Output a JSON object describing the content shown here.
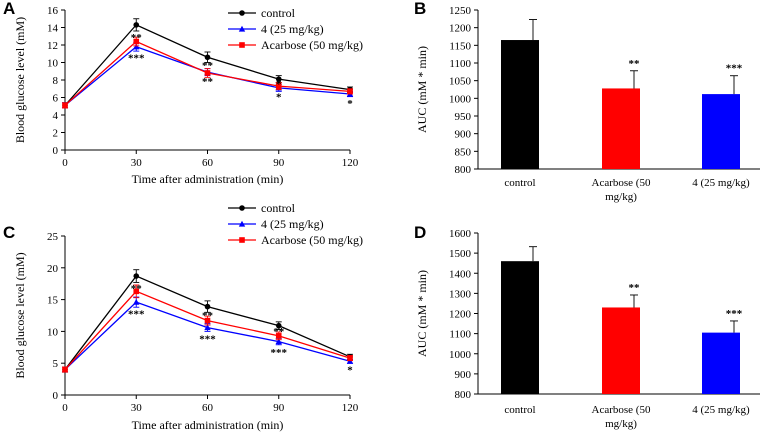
{
  "colors": {
    "control": "#000000",
    "compound": "#0000ff",
    "acarbose": "#ff0000"
  },
  "chart_data": [
    {
      "panel": "A",
      "type": "line",
      "xlabel": "Time after administration (min)",
      "ylabel": "Blood glucose level (mM)",
      "x": [
        0,
        30,
        60,
        90,
        120
      ],
      "xticks": [
        "0",
        "30",
        "60",
        "90",
        "120"
      ],
      "xlim": [
        0,
        120
      ],
      "ylim": [
        0,
        16
      ],
      "yticks": [
        "0",
        "2",
        "4",
        "6",
        "8",
        "10",
        "12",
        "14",
        "16"
      ],
      "legend": [
        "control",
        "4 (25 mg/kg)",
        "Acarbose (50 mg/kg)"
      ],
      "series": [
        {
          "name": "control",
          "color": "#000000",
          "marker": "circle",
          "values": [
            5.1,
            14.3,
            10.6,
            8.1,
            6.9
          ],
          "errors": [
            0.3,
            0.7,
            0.6,
            0.4,
            0.3
          ]
        },
        {
          "name": "4 (25 mg/kg)",
          "color": "#0000ff",
          "marker": "triangle",
          "values": [
            5.1,
            11.8,
            8.9,
            7.1,
            6.4
          ],
          "errors": [
            0.3,
            0.5,
            0.4,
            0.4,
            0.3
          ]
        },
        {
          "name": "Acarbose (50 mg/kg)",
          "color": "#ff0000",
          "marker": "square",
          "values": [
            5.1,
            12.4,
            8.8,
            7.3,
            6.7
          ],
          "errors": [
            0.3,
            0.5,
            0.5,
            0.4,
            0.3
          ]
        }
      ],
      "annotations": [
        {
          "x": 30,
          "y": 12.9,
          "text": "**"
        },
        {
          "x": 30,
          "y": 10.6,
          "text": "***"
        },
        {
          "x": 60,
          "y": 9.7,
          "text": "**"
        },
        {
          "x": 60,
          "y": 7.9,
          "text": "**"
        },
        {
          "x": 90,
          "y": 7.6,
          "text": "*"
        },
        {
          "x": 90,
          "y": 6.1,
          "text": "*"
        },
        {
          "x": 120,
          "y": 5.4,
          "text": "*"
        }
      ]
    },
    {
      "panel": "B",
      "type": "bar",
      "ylabel": "AUC (mM * min)",
      "ylim": [
        800,
        1250
      ],
      "yticks": [
        "800",
        "850",
        "900",
        "950",
        "1000",
        "1050",
        "1100",
        "1150",
        "1200",
        "1250"
      ],
      "categories": [
        [
          "control"
        ],
        [
          "Acarbose (50",
          "mg/kg)"
        ],
        [
          "4 (25 mg/kg)"
        ]
      ],
      "values": [
        1165,
        1028,
        1012
      ],
      "errors": [
        58,
        50,
        52
      ],
      "colors": [
        "#000000",
        "#ff0000",
        "#0000ff"
      ],
      "significance": [
        "",
        "**",
        "***"
      ]
    },
    {
      "panel": "C",
      "type": "line",
      "xlabel": "Time after administration (min)",
      "ylabel": "Blood glucose level (mM)",
      "x": [
        0,
        30,
        60,
        90,
        120
      ],
      "xticks": [
        "0",
        "30",
        "60",
        "90",
        "120"
      ],
      "xlim": [
        0,
        120
      ],
      "ylim": [
        0,
        25
      ],
      "yticks": [
        "0",
        "5",
        "10",
        "15",
        "20",
        "25"
      ],
      "legend": [
        "control",
        "4 (25 mg/kg)",
        "Acarbose (50 mg/kg)"
      ],
      "series": [
        {
          "name": "control",
          "color": "#000000",
          "marker": "circle",
          "values": [
            4.0,
            18.7,
            13.9,
            10.9,
            6.0
          ],
          "errors": [
            0.4,
            1.0,
            0.9,
            0.6,
            0.4
          ]
        },
        {
          "name": "4 (25 mg/kg)",
          "color": "#0000ff",
          "marker": "triangle",
          "values": [
            4.0,
            14.6,
            10.6,
            8.4,
            5.3
          ],
          "errors": [
            0.4,
            0.8,
            0.6,
            0.5,
            0.3
          ]
        },
        {
          "name": "Acarbose (50 mg/kg)",
          "color": "#ff0000",
          "marker": "square",
          "values": [
            4.0,
            16.3,
            11.7,
            9.3,
            5.8
          ],
          "errors": [
            0.4,
            1.0,
            0.7,
            0.6,
            0.4
          ]
        }
      ],
      "annotations": [
        {
          "x": 30,
          "y": 16.8,
          "text": "**"
        },
        {
          "x": 30,
          "y": 12.8,
          "text": "***"
        },
        {
          "x": 60,
          "y": 12.6,
          "text": "**"
        },
        {
          "x": 60,
          "y": 8.9,
          "text": "***"
        },
        {
          "x": 90,
          "y": 10.1,
          "text": "**"
        },
        {
          "x": 90,
          "y": 6.8,
          "text": "***"
        },
        {
          "x": 120,
          "y": 4.0,
          "text": "*"
        }
      ]
    },
    {
      "panel": "D",
      "type": "bar",
      "ylabel": "AUC (mM * min)",
      "ylim": [
        800,
        1600
      ],
      "yticks": [
        "800",
        "900",
        "1000",
        "1100",
        "1200",
        "1300",
        "1400",
        "1500",
        "1600"
      ],
      "categories": [
        [
          "control"
        ],
        [
          "Acarbose (50",
          "mg/kg)"
        ],
        [
          "4 (25 mg/kg)"
        ]
      ],
      "values": [
        1460,
        1230,
        1105
      ],
      "errors": [
        72,
        62,
        58
      ],
      "colors": [
        "#000000",
        "#ff0000",
        "#0000ff"
      ],
      "significance": [
        "",
        "**",
        "***"
      ]
    }
  ]
}
